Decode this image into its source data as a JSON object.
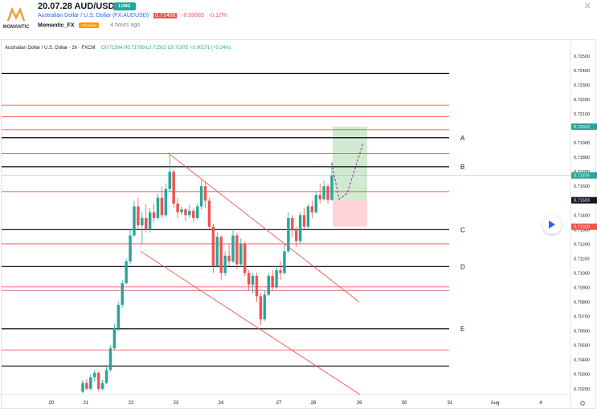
{
  "header": {
    "title": "20.07.28 AUD/USD",
    "badge": "LONG",
    "symbol_link": "Australian Dollar / U.S. Dollar (FX:AUDUSD)",
    "price": "0.71406",
    "change": "-0.00083",
    "change_pct": "-0.12%",
    "author": "Momantic_FX",
    "author_badge": "PREMIUM",
    "time_ago": "4 hours ago",
    "logo_text": "MOMANTIC"
  },
  "chart_legend": {
    "instrument": "Australian Dollar / U.S. Dollar · 2h · FXCM",
    "ohlc": "O0.71504  H0.71769  L0.71502  C0.71675  +0.00171 (+0.24%)"
  },
  "colors": {
    "up": "#26a69a",
    "down": "#ef5350",
    "red_level": "#f05454",
    "black_level": "#000000",
    "projection": "#9c27b0",
    "profit_zone": "#c8e6c9",
    "loss_zone": "#ffcdd2"
  },
  "icons": {
    "close": "close-icon",
    "play": "play-icon",
    "settings": "gear-icon"
  },
  "chart_data": {
    "type": "candlestick",
    "ylim": [
      0.7016,
      0.7256
    ],
    "price_axis_ticks": [
      "0.72500",
      "0.72400",
      "0.72300",
      "0.72200",
      "0.72100",
      "0.72000",
      "0.71900",
      "0.71800",
      "0.71700",
      "0.71600",
      "0.71500",
      "0.71400",
      "0.71300",
      "0.71200",
      "0.71100",
      "0.71000",
      "0.70900",
      "0.70800",
      "0.70700",
      "0.70600",
      "0.70500",
      "0.70400",
      "0.70300",
      "0.70200"
    ],
    "time_axis_ticks": [
      "20",
      "21",
      "22",
      "23",
      "24",
      "27",
      "28",
      "29",
      "30",
      "31",
      "Aug",
      "4"
    ],
    "price_labels": [
      {
        "value": 0.72012,
        "text": "0.72012",
        "color": "#26a69a"
      },
      {
        "value": 0.71675,
        "text": "0.71675",
        "color": "#26a69a"
      },
      {
        "value": 0.71503,
        "text": "0.71503",
        "color": "#131722"
      },
      {
        "value": 0.7132,
        "text": "0.71320",
        "color": "#ef5350"
      }
    ],
    "horizontal_levels": [
      {
        "value": 0.7238,
        "kind": "black",
        "label": ""
      },
      {
        "value": 0.7216,
        "kind": "red",
        "label": ""
      },
      {
        "value": 0.7208,
        "kind": "red",
        "label": ""
      },
      {
        "value": 0.7199,
        "kind": "red",
        "label": ""
      },
      {
        "value": 0.71935,
        "kind": "black",
        "label": "A"
      },
      {
        "value": 0.71825,
        "kind": "red",
        "label": ""
      },
      {
        "value": 0.71735,
        "kind": "black",
        "label": "B"
      },
      {
        "value": 0.71563,
        "kind": "red",
        "label": ""
      },
      {
        "value": 0.713,
        "kind": "black",
        "label": "C"
      },
      {
        "value": 0.71202,
        "kind": "red",
        "label": ""
      },
      {
        "value": 0.71045,
        "kind": "black",
        "label": "D"
      },
      {
        "value": 0.70904,
        "kind": "red",
        "label": ""
      },
      {
        "value": 0.70879,
        "kind": "red",
        "label": ""
      },
      {
        "value": 0.70615,
        "kind": "black",
        "label": "E"
      },
      {
        "value": 0.70468,
        "kind": "red",
        "label": ""
      },
      {
        "value": 0.70357,
        "kind": "black",
        "label": ""
      }
    ],
    "channel": {
      "upper": [
        [
          "22",
          0.7183
        ],
        [
          "28",
          0.708
        ]
      ],
      "lower": [
        [
          "22",
          0.7115
        ],
        [
          "28.5",
          0.7016
        ]
      ]
    },
    "position": {
      "entry": 0.71503,
      "target": 0.72012,
      "stop": 0.7132
    },
    "projection_path": [
      0.7176,
      0.7151,
      0.7155,
      0.719
    ],
    "candles": [
      [
        0.7018,
        0.7026,
        0.7017,
        0.7024
      ],
      [
        0.7024,
        0.7027,
        0.7019,
        0.702
      ],
      [
        0.702,
        0.703,
        0.7019,
        0.7028
      ],
      [
        0.7028,
        0.7033,
        0.7025,
        0.7031
      ],
      [
        0.7031,
        0.7032,
        0.7018,
        0.702
      ],
      [
        0.702,
        0.7026,
        0.7019,
        0.7024
      ],
      [
        0.7024,
        0.7035,
        0.7023,
        0.7033
      ],
      [
        0.7033,
        0.705,
        0.7032,
        0.7048
      ],
      [
        0.7048,
        0.7065,
        0.7047,
        0.7062
      ],
      [
        0.7062,
        0.708,
        0.706,
        0.7078
      ],
      [
        0.7078,
        0.7095,
        0.7076,
        0.7093
      ],
      [
        0.7093,
        0.711,
        0.7092,
        0.7108
      ],
      [
        0.7108,
        0.713,
        0.7106,
        0.7126
      ],
      [
        0.7126,
        0.715,
        0.7125,
        0.7146
      ],
      [
        0.7146,
        0.7152,
        0.713,
        0.7133
      ],
      [
        0.7133,
        0.7142,
        0.712,
        0.7138
      ],
      [
        0.7138,
        0.7148,
        0.7128,
        0.713
      ],
      [
        0.713,
        0.7145,
        0.7128,
        0.7142
      ],
      [
        0.7142,
        0.7148,
        0.7135,
        0.7138
      ],
      [
        0.7138,
        0.7155,
        0.7137,
        0.7152
      ],
      [
        0.7152,
        0.716,
        0.7138,
        0.714
      ],
      [
        0.714,
        0.7162,
        0.7139,
        0.7158
      ],
      [
        0.7158,
        0.7183,
        0.7156,
        0.717
      ],
      [
        0.717,
        0.7172,
        0.7145,
        0.7148
      ],
      [
        0.7148,
        0.7152,
        0.7138,
        0.7142
      ],
      [
        0.7142,
        0.7146,
        0.714,
        0.7144
      ],
      [
        0.7144,
        0.7145,
        0.7136,
        0.714
      ],
      [
        0.714,
        0.7147,
        0.7138,
        0.7143
      ],
      [
        0.7143,
        0.7145,
        0.7135,
        0.7138
      ],
      [
        0.7138,
        0.7148,
        0.7137,
        0.7146
      ],
      [
        0.7146,
        0.7164,
        0.7144,
        0.716
      ],
      [
        0.716,
        0.7163,
        0.7145,
        0.715
      ],
      [
        0.715,
        0.7152,
        0.713,
        0.7132
      ],
      [
        0.7132,
        0.7134,
        0.71,
        0.7105
      ],
      [
        0.7105,
        0.7128,
        0.7104,
        0.7125
      ],
      [
        0.7125,
        0.7126,
        0.7095,
        0.71
      ],
      [
        0.71,
        0.7115,
        0.7098,
        0.7112
      ],
      [
        0.7112,
        0.712,
        0.7105,
        0.7108
      ],
      [
        0.7108,
        0.713,
        0.7107,
        0.7126
      ],
      [
        0.7126,
        0.7128,
        0.7103,
        0.7106
      ],
      [
        0.7106,
        0.7124,
        0.7104,
        0.712
      ],
      [
        0.712,
        0.7122,
        0.7098,
        0.71
      ],
      [
        0.71,
        0.7102,
        0.7088,
        0.7092
      ],
      [
        0.7092,
        0.71,
        0.7086,
        0.7098
      ],
      [
        0.7098,
        0.71,
        0.708,
        0.7084
      ],
      [
        0.7084,
        0.7086,
        0.7064,
        0.7068
      ],
      [
        0.7068,
        0.7088,
        0.7067,
        0.7085
      ],
      [
        0.7085,
        0.71,
        0.7084,
        0.7098
      ],
      [
        0.7098,
        0.7102,
        0.7088,
        0.709
      ],
      [
        0.709,
        0.7105,
        0.7089,
        0.7102
      ],
      [
        0.7102,
        0.7108,
        0.7095,
        0.71
      ],
      [
        0.71,
        0.712,
        0.7099,
        0.7115
      ],
      [
        0.7115,
        0.7142,
        0.7114,
        0.7138
      ],
      [
        0.7138,
        0.714,
        0.7125,
        0.713
      ],
      [
        0.713,
        0.7132,
        0.7118,
        0.7122
      ],
      [
        0.7122,
        0.7142,
        0.712,
        0.714
      ],
      [
        0.714,
        0.7145,
        0.713,
        0.7132
      ],
      [
        0.7132,
        0.7148,
        0.7131,
        0.7146
      ],
      [
        0.7146,
        0.715,
        0.7138,
        0.7142
      ],
      [
        0.7142,
        0.7156,
        0.7141,
        0.7154
      ],
      [
        0.7154,
        0.7162,
        0.7148,
        0.7151
      ],
      [
        0.7151,
        0.7164,
        0.715,
        0.716
      ],
      [
        0.716,
        0.7162,
        0.7148,
        0.71504
      ],
      [
        0.71504,
        0.71769,
        0.71502,
        0.71675
      ]
    ]
  }
}
